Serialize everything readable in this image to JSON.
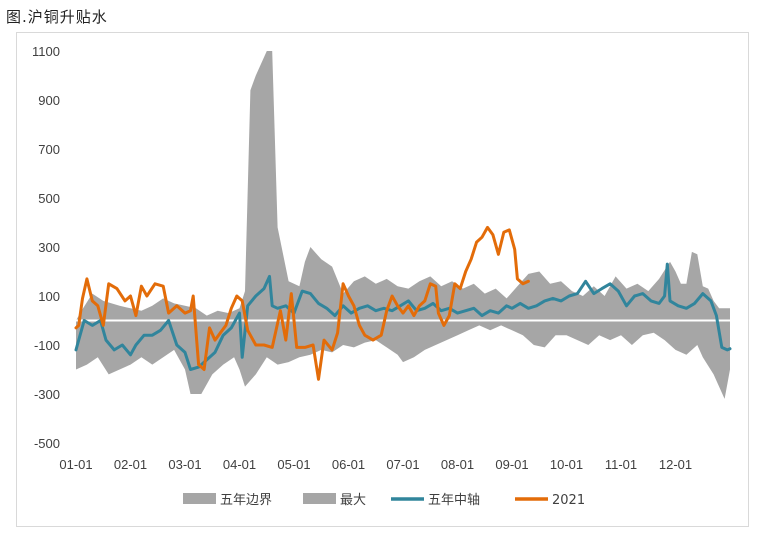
{
  "figure": {
    "title": "图.沪铜升贴水"
  },
  "chart_data": {
    "type": "area",
    "x_labels": [
      "01-01",
      "02-01",
      "03-01",
      "04-01",
      "05-01",
      "06-01",
      "07-01",
      "08-01",
      "09-01",
      "10-01",
      "11-01",
      "12-01"
    ],
    "y_ticks": [
      1100,
      900,
      700,
      500,
      300,
      100,
      -100,
      -300,
      -500
    ],
    "ylim": [
      -500,
      1100
    ],
    "xlim_month": [
      0,
      12
    ],
    "legend": [
      {
        "name": "五年边界",
        "color": "#a6a6a6",
        "kind": "area"
      },
      {
        "name": "最大",
        "color": "#a6a6a6",
        "kind": "area"
      },
      {
        "name": "五年中轴",
        "color": "#31859c",
        "kind": "line"
      },
      {
        "name": "2021",
        "color": "#e36c09",
        "kind": "line"
      }
    ],
    "colors": {
      "band": "#a6a6a6",
      "median": "#31859c",
      "y2021": "#e36c09"
    },
    "band_upper": [
      [
        0,
        0
      ],
      [
        0.1,
        40
      ],
      [
        0.3,
        110
      ],
      [
        0.5,
        80
      ],
      [
        0.8,
        60
      ],
      [
        1.0,
        50
      ],
      [
        1.2,
        40
      ],
      [
        1.4,
        60
      ],
      [
        1.6,
        90
      ],
      [
        1.8,
        70
      ],
      [
        2.0,
        60
      ],
      [
        2.2,
        50
      ],
      [
        2.4,
        20
      ],
      [
        2.6,
        40
      ],
      [
        2.8,
        30
      ],
      [
        3.0,
        50
      ],
      [
        3.1,
        120
      ],
      [
        3.2,
        940
      ],
      [
        3.3,
        1000
      ],
      [
        3.4,
        1050
      ],
      [
        3.5,
        1100
      ],
      [
        3.6,
        1100
      ],
      [
        3.7,
        380
      ],
      [
        3.9,
        160
      ],
      [
        4.1,
        140
      ],
      [
        4.2,
        240
      ],
      [
        4.3,
        300
      ],
      [
        4.5,
        250
      ],
      [
        4.7,
        220
      ],
      [
        4.9,
        110
      ],
      [
        5.1,
        160
      ],
      [
        5.3,
        180
      ],
      [
        5.5,
        150
      ],
      [
        5.7,
        170
      ],
      [
        5.9,
        140
      ],
      [
        6.1,
        130
      ],
      [
        6.3,
        160
      ],
      [
        6.5,
        180
      ],
      [
        6.7,
        140
      ],
      [
        6.9,
        160
      ],
      [
        7.1,
        130
      ],
      [
        7.3,
        150
      ],
      [
        7.5,
        110
      ],
      [
        7.7,
        130
      ],
      [
        7.9,
        90
      ],
      [
        8.1,
        140
      ],
      [
        8.3,
        190
      ],
      [
        8.5,
        200
      ],
      [
        8.7,
        150
      ],
      [
        8.9,
        160
      ],
      [
        9.1,
        120
      ],
      [
        9.3,
        100
      ],
      [
        9.5,
        140
      ],
      [
        9.7,
        100
      ],
      [
        9.9,
        180
      ],
      [
        10.1,
        130
      ],
      [
        10.3,
        150
      ],
      [
        10.5,
        120
      ],
      [
        10.7,
        170
      ],
      [
        10.9,
        240
      ],
      [
        11.0,
        200
      ],
      [
        11.1,
        150
      ],
      [
        11.2,
        150
      ],
      [
        11.3,
        280
      ],
      [
        11.4,
        270
      ],
      [
        11.5,
        140
      ],
      [
        11.6,
        130
      ],
      [
        11.7,
        80
      ],
      [
        11.8,
        50
      ],
      [
        12.0,
        50
      ]
    ],
    "band_lower": [
      [
        0,
        -200
      ],
      [
        0.2,
        -180
      ],
      [
        0.4,
        -150
      ],
      [
        0.6,
        -220
      ],
      [
        0.8,
        -200
      ],
      [
        1.0,
        -180
      ],
      [
        1.2,
        -150
      ],
      [
        1.4,
        -180
      ],
      [
        1.6,
        -150
      ],
      [
        1.8,
        -120
      ],
      [
        2.0,
        -200
      ],
      [
        2.1,
        -300
      ],
      [
        2.3,
        -300
      ],
      [
        2.5,
        -220
      ],
      [
        2.7,
        -180
      ],
      [
        2.9,
        -150
      ],
      [
        3.0,
        -200
      ],
      [
        3.1,
        -270
      ],
      [
        3.3,
        -220
      ],
      [
        3.5,
        -150
      ],
      [
        3.7,
        -180
      ],
      [
        3.9,
        -170
      ],
      [
        4.1,
        -150
      ],
      [
        4.3,
        -140
      ],
      [
        4.5,
        -120
      ],
      [
        4.7,
        -130
      ],
      [
        4.9,
        -100
      ],
      [
        5.1,
        -110
      ],
      [
        5.3,
        -90
      ],
      [
        5.5,
        -80
      ],
      [
        5.7,
        -110
      ],
      [
        5.9,
        -140
      ],
      [
        6.0,
        -170
      ],
      [
        6.2,
        -150
      ],
      [
        6.4,
        -120
      ],
      [
        6.6,
        -100
      ],
      [
        6.8,
        -80
      ],
      [
        7.0,
        -60
      ],
      [
        7.2,
        -40
      ],
      [
        7.4,
        -20
      ],
      [
        7.6,
        -40
      ],
      [
        7.8,
        -20
      ],
      [
        8.0,
        -40
      ],
      [
        8.2,
        -60
      ],
      [
        8.4,
        -100
      ],
      [
        8.6,
        -110
      ],
      [
        8.8,
        -60
      ],
      [
        9.0,
        -60
      ],
      [
        9.2,
        -80
      ],
      [
        9.4,
        -100
      ],
      [
        9.6,
        -60
      ],
      [
        9.8,
        -80
      ],
      [
        10.0,
        -60
      ],
      [
        10.2,
        -100
      ],
      [
        10.4,
        -60
      ],
      [
        10.6,
        -50
      ],
      [
        10.8,
        -80
      ],
      [
        11.0,
        -120
      ],
      [
        11.2,
        -140
      ],
      [
        11.4,
        -100
      ],
      [
        11.5,
        -150
      ],
      [
        11.7,
        -220
      ],
      [
        11.9,
        -320
      ],
      [
        12.0,
        -200
      ]
    ],
    "median": [
      [
        0,
        -120
      ],
      [
        0.05,
        -80
      ],
      [
        0.15,
        0
      ],
      [
        0.3,
        -20
      ],
      [
        0.45,
        0
      ],
      [
        0.55,
        -80
      ],
      [
        0.7,
        -120
      ],
      [
        0.85,
        -100
      ],
      [
        1.0,
        -140
      ],
      [
        1.1,
        -100
      ],
      [
        1.25,
        -60
      ],
      [
        1.4,
        -60
      ],
      [
        1.55,
        -40
      ],
      [
        1.7,
        0
      ],
      [
        1.85,
        -100
      ],
      [
        2.0,
        -130
      ],
      [
        2.1,
        -200
      ],
      [
        2.25,
        -190
      ],
      [
        2.4,
        -160
      ],
      [
        2.55,
        -130
      ],
      [
        2.7,
        -60
      ],
      [
        2.85,
        -30
      ],
      [
        3.0,
        30
      ],
      [
        3.05,
        -150
      ],
      [
        3.15,
        60
      ],
      [
        3.3,
        100
      ],
      [
        3.45,
        130
      ],
      [
        3.55,
        180
      ],
      [
        3.6,
        60
      ],
      [
        3.7,
        50
      ],
      [
        3.85,
        60
      ],
      [
        4.0,
        30
      ],
      [
        4.15,
        120
      ],
      [
        4.3,
        110
      ],
      [
        4.45,
        70
      ],
      [
        4.6,
        50
      ],
      [
        4.75,
        20
      ],
      [
        4.9,
        60
      ],
      [
        5.05,
        30
      ],
      [
        5.2,
        50
      ],
      [
        5.35,
        60
      ],
      [
        5.5,
        40
      ],
      [
        5.65,
        50
      ],
      [
        5.8,
        40
      ],
      [
        5.95,
        60
      ],
      [
        6.1,
        80
      ],
      [
        6.25,
        40
      ],
      [
        6.4,
        50
      ],
      [
        6.55,
        70
      ],
      [
        6.7,
        40
      ],
      [
        6.85,
        50
      ],
      [
        7.0,
        30
      ],
      [
        7.15,
        40
      ],
      [
        7.3,
        50
      ],
      [
        7.45,
        20
      ],
      [
        7.6,
        40
      ],
      [
        7.75,
        30
      ],
      [
        7.9,
        60
      ],
      [
        8.0,
        50
      ],
      [
        8.15,
        70
      ],
      [
        8.3,
        50
      ],
      [
        8.45,
        60
      ],
      [
        8.6,
        80
      ],
      [
        8.75,
        90
      ],
      [
        8.9,
        80
      ],
      [
        9.05,
        100
      ],
      [
        9.2,
        110
      ],
      [
        9.35,
        160
      ],
      [
        9.5,
        110
      ],
      [
        9.65,
        130
      ],
      [
        9.8,
        150
      ],
      [
        9.95,
        120
      ],
      [
        10.1,
        60
      ],
      [
        10.25,
        100
      ],
      [
        10.4,
        110
      ],
      [
        10.55,
        80
      ],
      [
        10.7,
        70
      ],
      [
        10.8,
        100
      ],
      [
        10.85,
        230
      ],
      [
        10.9,
        80
      ],
      [
        11.05,
        60
      ],
      [
        11.2,
        50
      ],
      [
        11.35,
        70
      ],
      [
        11.5,
        110
      ],
      [
        11.65,
        80
      ],
      [
        11.75,
        20
      ],
      [
        11.85,
        -110
      ],
      [
        11.95,
        -120
      ],
      [
        12.0,
        -115
      ]
    ],
    "series_2021": [
      [
        0,
        -30
      ],
      [
        0.05,
        -20
      ],
      [
        0.12,
        90
      ],
      [
        0.2,
        170
      ],
      [
        0.3,
        80
      ],
      [
        0.4,
        60
      ],
      [
        0.5,
        -20
      ],
      [
        0.6,
        150
      ],
      [
        0.75,
        130
      ],
      [
        0.9,
        80
      ],
      [
        1.0,
        100
      ],
      [
        1.1,
        20
      ],
      [
        1.2,
        140
      ],
      [
        1.3,
        100
      ],
      [
        1.45,
        150
      ],
      [
        1.6,
        140
      ],
      [
        1.7,
        30
      ],
      [
        1.85,
        60
      ],
      [
        2.0,
        30
      ],
      [
        2.1,
        40
      ],
      [
        2.15,
        100
      ],
      [
        2.25,
        -180
      ],
      [
        2.35,
        -200
      ],
      [
        2.45,
        -30
      ],
      [
        2.55,
        -80
      ],
      [
        2.65,
        -50
      ],
      [
        2.75,
        -20
      ],
      [
        2.85,
        50
      ],
      [
        2.95,
        100
      ],
      [
        3.05,
        80
      ],
      [
        3.15,
        -40
      ],
      [
        3.3,
        -100
      ],
      [
        3.45,
        -100
      ],
      [
        3.6,
        -110
      ],
      [
        3.75,
        40
      ],
      [
        3.85,
        -80
      ],
      [
        3.95,
        110
      ],
      [
        4.05,
        -110
      ],
      [
        4.2,
        -110
      ],
      [
        4.35,
        -100
      ],
      [
        4.45,
        -240
      ],
      [
        4.55,
        -80
      ],
      [
        4.7,
        -120
      ],
      [
        4.8,
        -50
      ],
      [
        4.9,
        150
      ],
      [
        5.0,
        100
      ],
      [
        5.1,
        60
      ],
      [
        5.2,
        -20
      ],
      [
        5.3,
        -60
      ],
      [
        5.45,
        -80
      ],
      [
        5.6,
        -60
      ],
      [
        5.7,
        40
      ],
      [
        5.8,
        100
      ],
      [
        5.9,
        60
      ],
      [
        6.0,
        30
      ],
      [
        6.1,
        60
      ],
      [
        6.2,
        20
      ],
      [
        6.3,
        60
      ],
      [
        6.4,
        80
      ],
      [
        6.5,
        150
      ],
      [
        6.6,
        140
      ],
      [
        6.65,
        30
      ],
      [
        6.75,
        -20
      ],
      [
        6.85,
        20
      ],
      [
        6.95,
        150
      ],
      [
        7.05,
        130
      ],
      [
        7.15,
        200
      ],
      [
        7.25,
        250
      ],
      [
        7.35,
        320
      ],
      [
        7.45,
        340
      ],
      [
        7.55,
        380
      ],
      [
        7.65,
        350
      ],
      [
        7.75,
        270
      ],
      [
        7.85,
        360
      ],
      [
        7.95,
        370
      ],
      [
        8.05,
        290
      ],
      [
        8.1,
        170
      ],
      [
        8.2,
        150
      ],
      [
        8.3,
        160
      ]
    ]
  }
}
